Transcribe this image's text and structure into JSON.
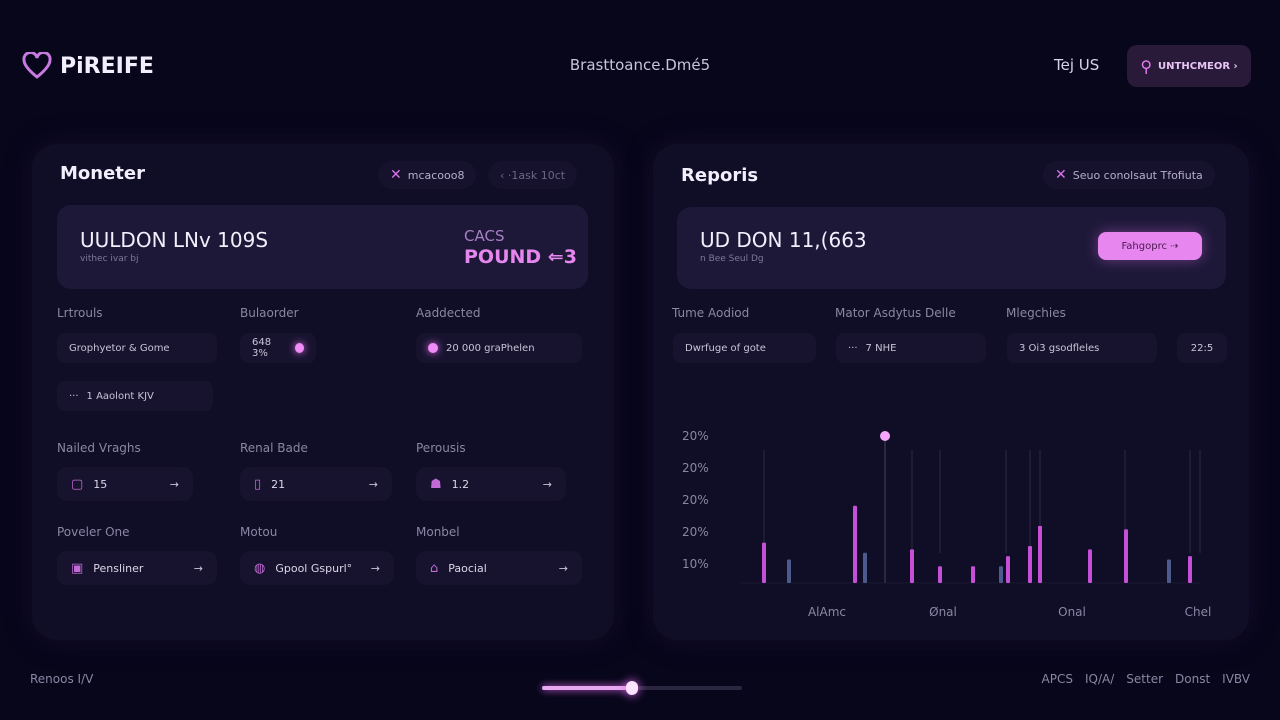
{
  "header": {
    "brand": "PiREIFE",
    "title": "Brasttoance.Dmé5",
    "lang": "Tej US",
    "action_button": "UNTHCMEOR ›",
    "accent": "#e686ee"
  },
  "monitor": {
    "title": "Moneter",
    "chips": [
      "mcacooo8",
      "‹ ·1ask 10ct"
    ],
    "hero": {
      "value": "UULDON LNv 109S",
      "sub": "vithec ivar bj",
      "side_label": "CACS",
      "side_value": "POUND ⇐3"
    },
    "fields": [
      {
        "label": "Lrtrouls",
        "value": "Grophyetor & Gome"
      },
      {
        "label": "Bulaorder",
        "value": "648 3%"
      },
      {
        "label": "Aaddected",
        "value": "20 000 graPhelen"
      }
    ],
    "extra_field": "1 Aaolont KJV",
    "cards": [
      {
        "label": "Nailed Vraghs",
        "value": "15",
        "icon": "square-icon"
      },
      {
        "label": "Renal Bade",
        "value": "21",
        "icon": "battery-icon"
      },
      {
        "label": "Perousis",
        "value": "1.2",
        "icon": "profile-icon"
      },
      {
        "label": "Poveler One",
        "value": "Pensliner",
        "icon": "bag-icon"
      },
      {
        "label": "Motou",
        "value": "Gpool Gspurl°",
        "icon": "globe-icon"
      },
      {
        "label": "Monbel",
        "value": "Paocial",
        "icon": "home-icon"
      }
    ]
  },
  "reports": {
    "title": "Reporis",
    "chip": "Seuo conolsaut Tfofiuta",
    "hero": {
      "value": "UD DON 11,(663",
      "sub": "n Bee Seul Dg",
      "button": "Fahgoprc ⇢"
    },
    "fields": [
      {
        "label": "Tume Aodiod",
        "value": "Dwrfuge of gote"
      },
      {
        "label": "Mator Asdytus Delle",
        "value": "7 NHE"
      },
      {
        "label": "Mlegchies",
        "value": "3 Oi3 gsodfleles"
      }
    ],
    "extra_value": "22:5"
  },
  "chart_data": {
    "type": "bar",
    "ytick_labels": [
      "20%",
      "20%",
      "20%",
      "20%",
      "10%"
    ],
    "xtick_labels": [
      "AlAmc",
      "Ønal",
      "Onal",
      "Chel"
    ],
    "colors": {
      "primary": "#c54fd6",
      "secondary": "#4d5a8c"
    },
    "series": [
      {
        "values": [
          12,
          23,
          10,
          5,
          5,
          8,
          11,
          17,
          10,
          16,
          8
        ],
        "color": "primary"
      },
      {
        "values": [
          7,
          9,
          5,
          7
        ],
        "color": "secondary"
      }
    ],
    "highlight_marker": {
      "value": 46
    }
  },
  "footer": {
    "left": "Renoos I/V",
    "links": [
      "APCS",
      "IQ/A/",
      "Setter",
      "Donst",
      "IVBV"
    ],
    "slider_progress": 0.45
  }
}
